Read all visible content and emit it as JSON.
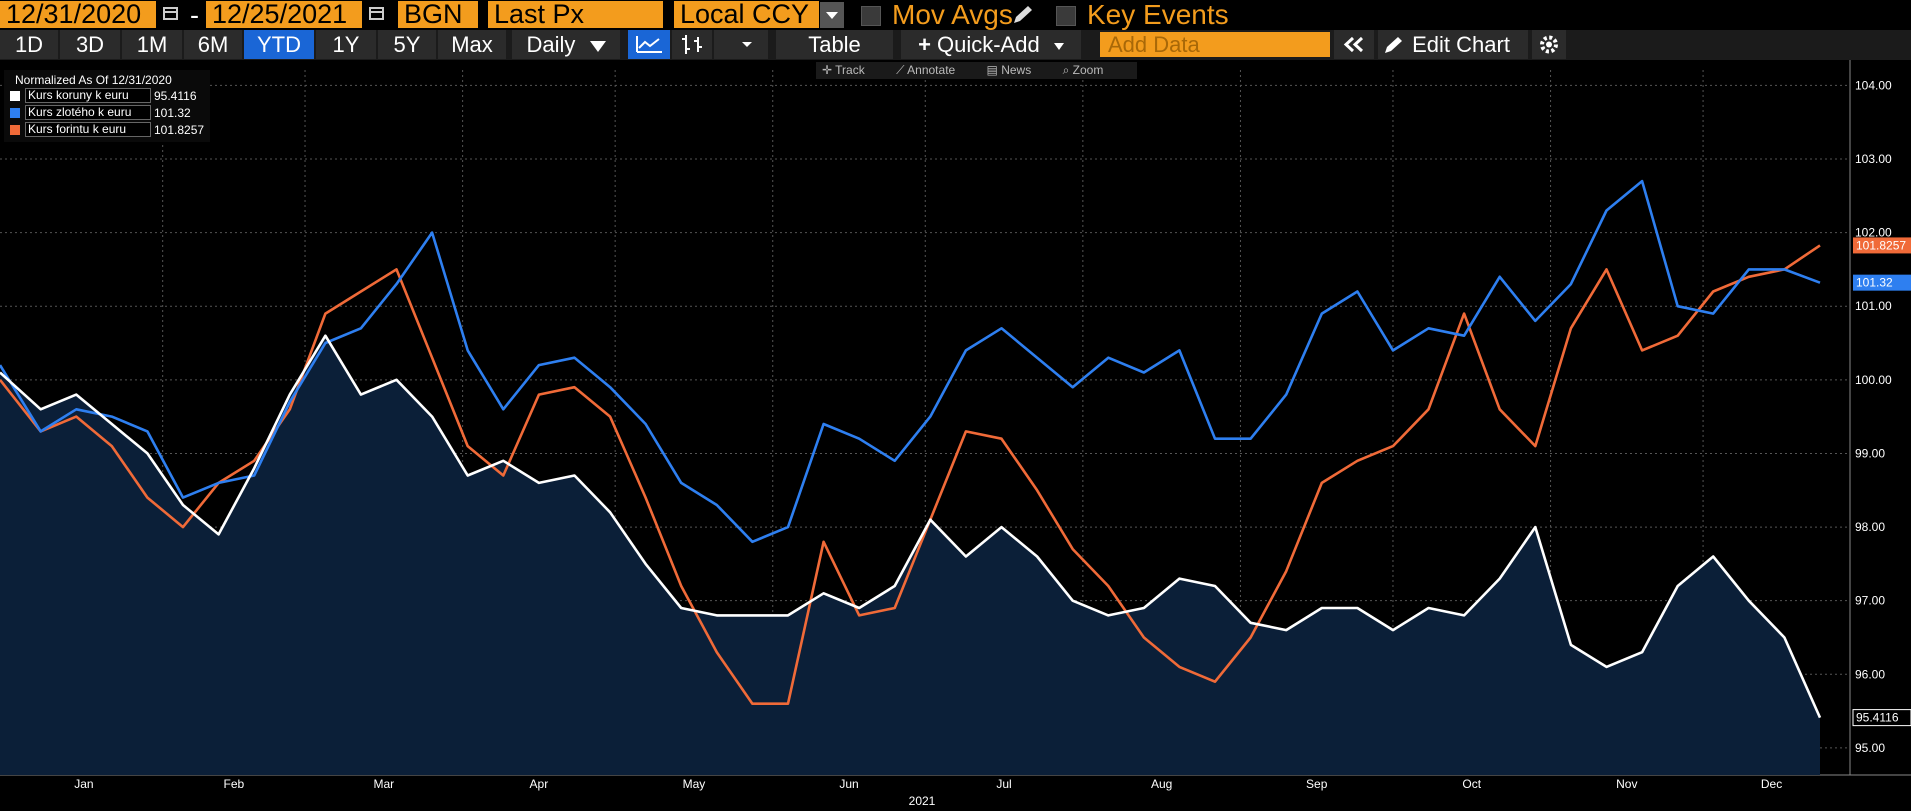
{
  "toolbar": {
    "start_date": "12/31/2020",
    "end_date": "12/25/2021",
    "date_separator": "-",
    "market": "BGN",
    "field": "Last Px",
    "currency": "Local CCY",
    "mov_avgs": "Mov Avgs",
    "key_events": "Key Events",
    "periods": [
      "1D",
      "3D",
      "1M",
      "6M",
      "YTD",
      "1Y",
      "5Y",
      "Max"
    ],
    "selected_period": "YTD",
    "frequency": "Daily",
    "table_label": "Table",
    "quick_add_label": "Quick-Add",
    "add_data_placeholder": "Add Data",
    "edit_chart_label": "Edit Chart"
  },
  "subtools": {
    "track": "Track",
    "annotate": "Annotate",
    "news": "News",
    "zoom": "Zoom"
  },
  "legend": {
    "title": "Normalized As Of 12/31/2020"
  },
  "colors": {
    "czk": "#ffffff",
    "pln": "#2e7ff0",
    "huf": "#f06a38",
    "fill": "#0b1f38",
    "accent": "#f39c1d",
    "selected": "#1a66d6"
  },
  "chart_data": {
    "type": "line",
    "ylim": [
      94.7,
      104.1
    ],
    "yticks": [
      "104.00",
      "103.00",
      "102.00",
      "101.00",
      "100.00",
      "99.00",
      "98.00",
      "97.00",
      "96.00",
      "95.00"
    ],
    "month_labels": [
      "Jan",
      "Feb",
      "Mar",
      "Apr",
      "May",
      "Jun",
      "Jul",
      "Aug",
      "Sep",
      "Oct",
      "Nov",
      "Dec"
    ],
    "year_label": "2021",
    "x": [
      "2020-12-31",
      "2021-01-08",
      "2021-01-15",
      "2021-01-22",
      "2021-01-29",
      "2021-02-05",
      "2021-02-12",
      "2021-02-19",
      "2021-02-26",
      "2021-03-05",
      "2021-03-12",
      "2021-03-19",
      "2021-03-26",
      "2021-04-02",
      "2021-04-09",
      "2021-04-16",
      "2021-04-23",
      "2021-04-30",
      "2021-05-07",
      "2021-05-14",
      "2021-05-21",
      "2021-05-28",
      "2021-06-04",
      "2021-06-11",
      "2021-06-18",
      "2021-06-25",
      "2021-07-02",
      "2021-07-09",
      "2021-07-16",
      "2021-07-23",
      "2021-07-30",
      "2021-08-06",
      "2021-08-13",
      "2021-08-20",
      "2021-08-27",
      "2021-09-03",
      "2021-09-10",
      "2021-09-17",
      "2021-09-24",
      "2021-10-01",
      "2021-10-08",
      "2021-10-15",
      "2021-10-22",
      "2021-10-29",
      "2021-11-05",
      "2021-11-12",
      "2021-11-19",
      "2021-11-26",
      "2021-12-03",
      "2021-12-10",
      "2021-12-17",
      "2021-12-24"
    ],
    "series": [
      {
        "name": "Kurs koruny k euru",
        "last": "95.4116",
        "values": [
          100.1,
          99.6,
          99.8,
          99.4,
          99.0,
          98.3,
          97.9,
          98.8,
          99.8,
          100.6,
          99.8,
          100.0,
          99.5,
          98.7,
          98.9,
          98.6,
          98.7,
          98.2,
          97.5,
          96.9,
          96.8,
          96.8,
          96.8,
          97.1,
          96.9,
          97.2,
          98.1,
          97.6,
          98.0,
          97.6,
          97.0,
          96.8,
          96.9,
          97.3,
          97.2,
          96.7,
          96.6,
          96.9,
          96.9,
          96.6,
          96.9,
          96.8,
          97.3,
          98.0,
          96.4,
          96.1,
          96.3,
          97.2,
          97.6,
          97.0,
          96.5,
          95.4116
        ]
      },
      {
        "name": "Kurs zlotého k euru",
        "last": "101.32",
        "values": [
          100.2,
          99.3,
          99.6,
          99.5,
          99.3,
          98.4,
          98.6,
          98.7,
          99.7,
          100.5,
          100.7,
          101.3,
          102.0,
          100.4,
          99.6,
          100.2,
          100.3,
          99.9,
          99.4,
          98.6,
          98.3,
          97.8,
          98.0,
          99.4,
          99.2,
          98.9,
          99.5,
          100.4,
          100.7,
          100.3,
          99.9,
          100.3,
          100.1,
          100.4,
          99.2,
          99.2,
          99.8,
          100.9,
          101.2,
          100.4,
          100.7,
          100.6,
          101.4,
          100.8,
          101.3,
          102.3,
          102.7,
          101.0,
          100.9,
          101.5,
          101.5,
          101.32
        ]
      },
      {
        "name": "Kurs forintu k euru",
        "last": "101.8257",
        "values": [
          100.0,
          99.3,
          99.5,
          99.1,
          98.4,
          98.0,
          98.6,
          98.9,
          99.6,
          100.9,
          101.2,
          101.5,
          100.3,
          99.1,
          98.7,
          99.8,
          99.9,
          99.5,
          98.4,
          97.2,
          96.3,
          95.6,
          95.6,
          97.8,
          96.8,
          96.9,
          98.1,
          99.3,
          99.2,
          98.5,
          97.7,
          97.2,
          96.5,
          96.1,
          95.9,
          96.5,
          97.4,
          98.6,
          98.9,
          99.1,
          99.6,
          100.9,
          99.6,
          99.1,
          100.7,
          101.5,
          100.4,
          100.6,
          101.2,
          101.4,
          101.5,
          101.8257
        ]
      }
    ]
  }
}
